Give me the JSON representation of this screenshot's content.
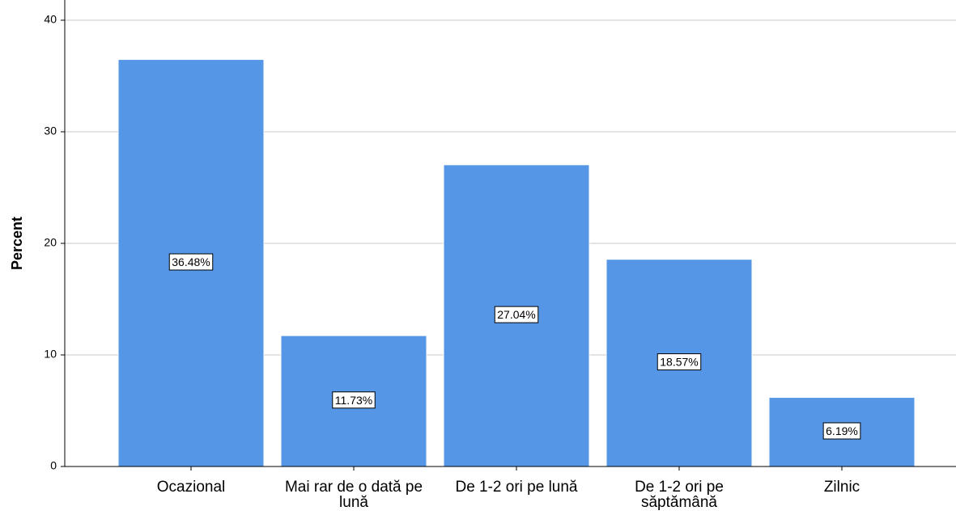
{
  "chart_data": {
    "type": "bar",
    "y_label": "Percent",
    "categories": [
      "Ocazional",
      "Mai rar de o dată pe lună",
      "De 1-2 ori pe lună",
      "De 1-2 ori pe săptămână",
      "Zilnic"
    ],
    "values": [
      36.48,
      11.73,
      27.04,
      18.57,
      6.19
    ],
    "value_labels": [
      "36.48%",
      "11.73%",
      "27.04%",
      "18.57%",
      "6.19%"
    ],
    "color": "#5596e6",
    "ylim": [
      0,
      40
    ],
    "yticks": [
      0,
      10,
      20,
      30,
      40
    ],
    "grid": true
  }
}
